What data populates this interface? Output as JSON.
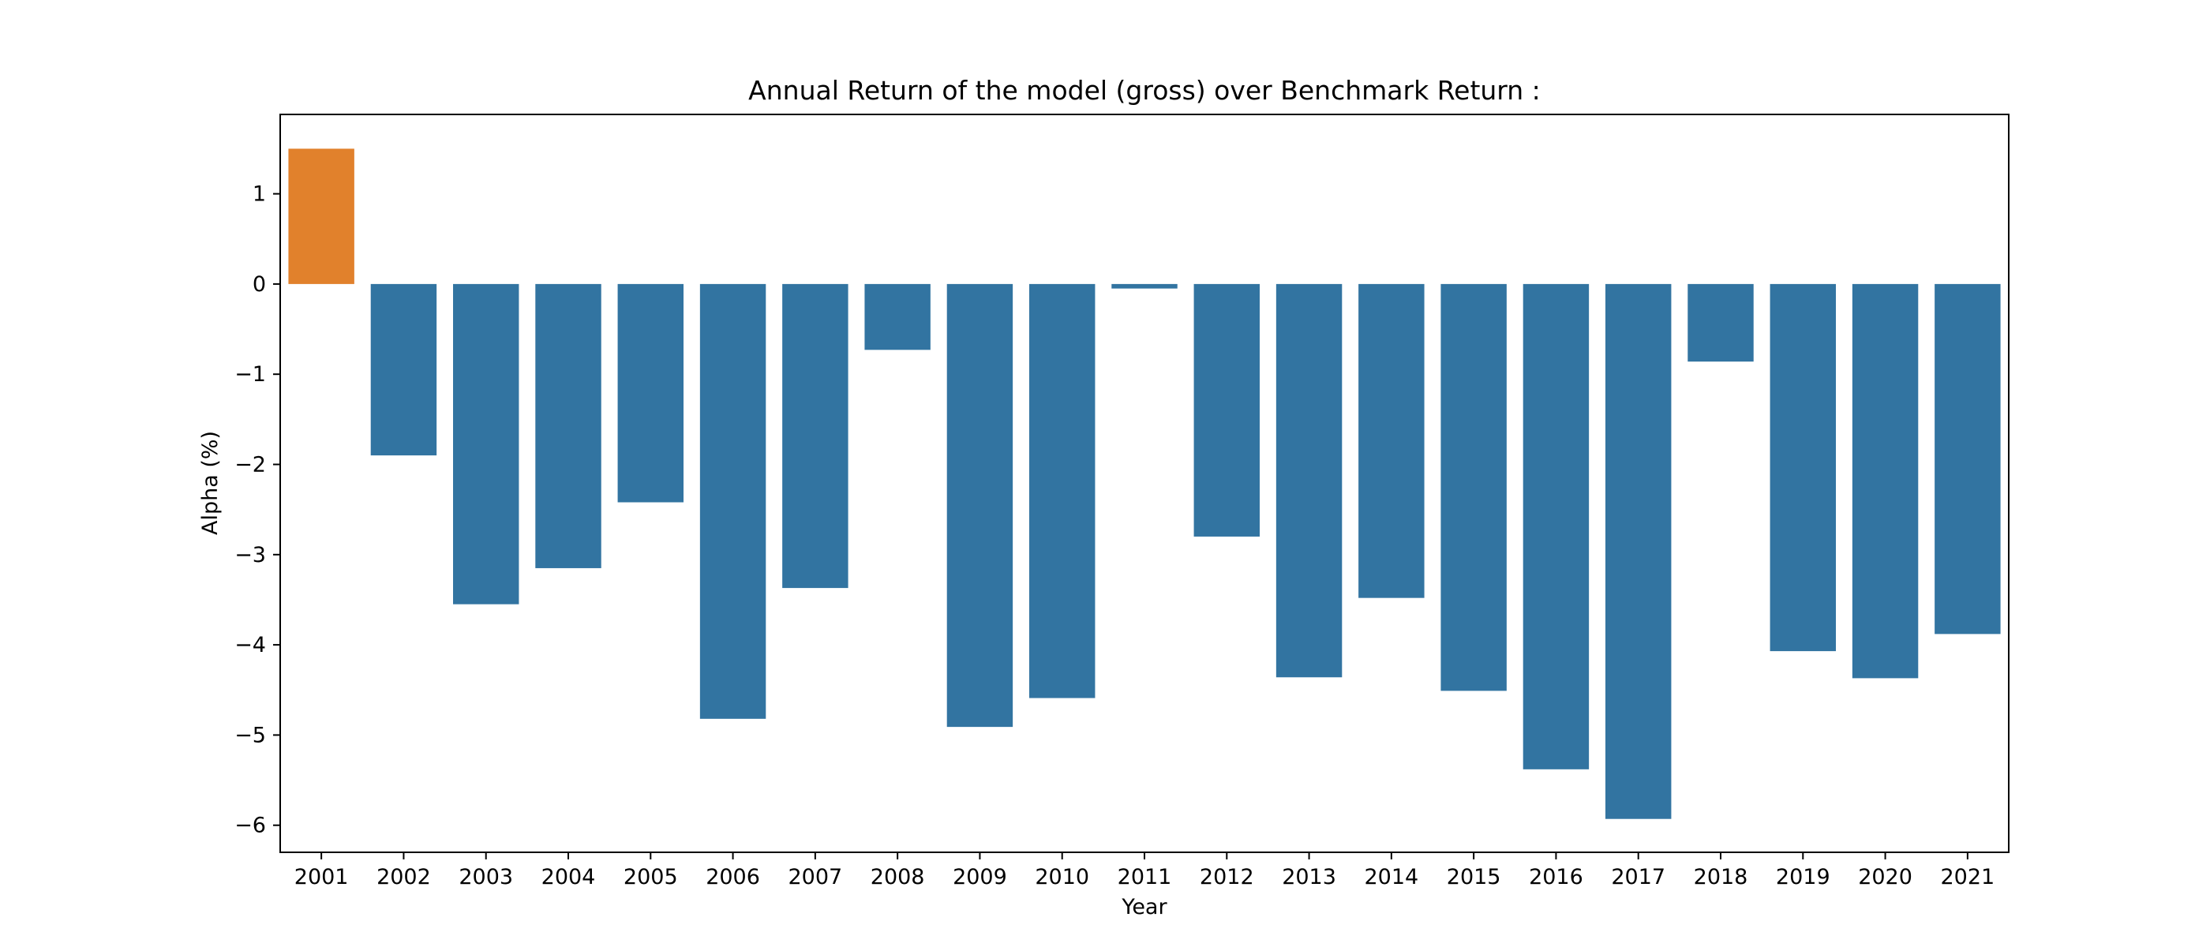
{
  "chart_data": {
    "type": "bar",
    "title": "Annual Return of the model (gross) over Benchmark Return :",
    "xlabel": "Year",
    "ylabel": "Alpha (%)",
    "categories": [
      "2001",
      "2002",
      "2003",
      "2004",
      "2005",
      "2006",
      "2007",
      "2008",
      "2009",
      "2010",
      "2011",
      "2012",
      "2013",
      "2014",
      "2015",
      "2016",
      "2017",
      "2018",
      "2019",
      "2020",
      "2021"
    ],
    "values": [
      1.5,
      -1.9,
      -3.55,
      -3.15,
      -2.42,
      -4.82,
      -3.37,
      -0.73,
      -4.91,
      -4.59,
      -0.05,
      -2.8,
      -4.36,
      -3.48,
      -4.51,
      -5.38,
      -5.93,
      -0.86,
      -4.07,
      -4.37,
      -3.88
    ],
    "ylim": [
      -6.3,
      1.88
    ],
    "yticks": [
      1,
      0,
      -1,
      -2,
      -3,
      -4,
      -5,
      -6
    ],
    "ytick_labels": [
      "1",
      "0",
      "−1",
      "−2",
      "−3",
      "−4",
      "−5",
      "−6"
    ],
    "colors": {
      "positive": "#e1812c",
      "negative": "#3274a1",
      "axis": "#000000"
    },
    "grid": false
  }
}
